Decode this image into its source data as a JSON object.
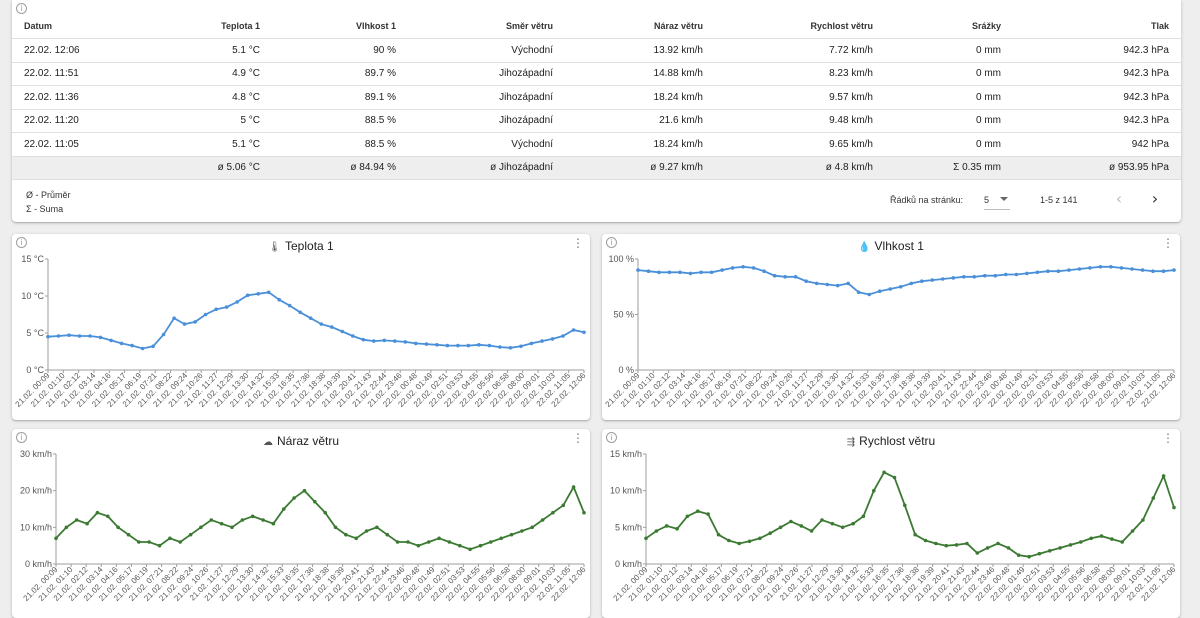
{
  "table": {
    "columns": [
      "Datum",
      "Teplota 1",
      "Vlhkost 1",
      "Směr větru",
      "Náraz větru",
      "Rychlost větru",
      "Srážky",
      "Tlak"
    ],
    "rows": [
      [
        "22.02. 12:06",
        "5.1 °C",
        "90 %",
        "Východní",
        "13.92 km/h",
        "7.72 km/h",
        "0 mm",
        "942.3 hPa"
      ],
      [
        "22.02. 11:51",
        "4.9 °C",
        "89.7 %",
        "Jihozápadní",
        "14.88 km/h",
        "8.23 km/h",
        "0 mm",
        "942.3 hPa"
      ],
      [
        "22.02. 11:36",
        "4.8 °C",
        "89.1 %",
        "Jihozápadní",
        "18.24 km/h",
        "9.57 km/h",
        "0 mm",
        "942.3 hPa"
      ],
      [
        "22.02. 11:20",
        "5 °C",
        "88.5 %",
        "Jihozápadní",
        "21.6 km/h",
        "9.48 km/h",
        "0 mm",
        "942.3 hPa"
      ],
      [
        "22.02. 11:05",
        "5.1 °C",
        "88.5 %",
        "Východní",
        "18.24 km/h",
        "9.65 km/h",
        "0 mm",
        "942 hPa"
      ]
    ],
    "summary": [
      "",
      "ø 5.06 °C",
      "ø 84.94 %",
      "ø Jihozápadní",
      "ø 9.27 km/h",
      "ø 4.8 km/h",
      "Σ 0.35 mm",
      "ø 953.95 hPa"
    ],
    "legend_avg": "Ø - Průměr",
    "legend_sum": "Σ - Suma",
    "rows_per_page_label": "Řádků na stránku:",
    "rows_per_page_value": "5",
    "page_range": "1-5 z 141"
  },
  "icons": {
    "info": "info-icon",
    "menu": "more-vert-icon",
    "prev": "chevron-left-icon",
    "next": "chevron-right-icon",
    "thermometer": "thermometer-icon",
    "drop": "water-drop-icon",
    "cloud": "cloud-wind-icon",
    "wind": "wind-icon"
  },
  "colors": {
    "blue_series": "#4a90d9",
    "green_series": "#3c7a33"
  },
  "x_ticks": [
    "21.02. 00:09",
    "21.02. 01:10",
    "21.02. 02:12",
    "21.02. 03:14",
    "21.02. 04:16",
    "21.02. 05:17",
    "21.02. 06:19",
    "21.02. 07:21",
    "21.02. 08:22",
    "21.02. 09:24",
    "21.02. 10:26",
    "21.02. 11:27",
    "21.02. 12:29",
    "21.02. 13:30",
    "21.02. 14:32",
    "21.02. 15:33",
    "21.02. 16:35",
    "21.02. 17:36",
    "21.02. 18:38",
    "21.02. 19:39",
    "21.02. 20:41",
    "21.02. 21:43",
    "21.02. 22:44",
    "21.02. 23:46",
    "22.02. 00:48",
    "22.02. 01:49",
    "22.02. 02:51",
    "22.02. 03:53",
    "22.02. 04:55",
    "22.02. 05:56",
    "22.02. 06:58",
    "22.02. 08:00",
    "22.02. 09:01",
    "22.02. 10:03",
    "22.02. 11:05",
    "22.02. 12:06"
  ],
  "chart_data": [
    {
      "type": "line",
      "title": "Teplota 1",
      "ylim": [
        0,
        15
      ],
      "yticks": [
        "0 °C",
        "5 °C",
        "10 °C",
        "15 °C"
      ],
      "ytick_values": [
        0,
        5,
        10,
        15
      ],
      "series": [
        {
          "values": [
            4.5,
            4.6,
            4.7,
            4.6,
            4.6,
            4.4,
            4.0,
            3.6,
            3.3,
            2.9,
            3.2,
            4.8,
            7.0,
            6.2,
            6.5,
            7.5,
            8.2,
            8.5,
            9.2,
            10.1,
            10.3,
            10.5,
            9.5,
            8.7,
            7.8,
            7.0,
            6.2,
            5.8,
            5.2,
            4.6,
            4.1,
            3.9,
            4.0,
            3.9,
            3.8,
            3.6,
            3.5,
            3.4,
            3.3,
            3.3,
            3.3,
            3.4,
            3.3,
            3.1,
            3.0,
            3.2,
            3.6,
            3.9,
            4.2,
            4.6,
            5.4,
            5.1
          ]
        }
      ]
    },
    {
      "type": "line",
      "title": "Vlhkost 1",
      "ylim": [
        0,
        100
      ],
      "yticks": [
        "0 %",
        "50 %",
        "100 %"
      ],
      "ytick_values": [
        0,
        50,
        100
      ],
      "series": [
        {
          "values": [
            90,
            89,
            88,
            88,
            88,
            87,
            88,
            88,
            90,
            92,
            93,
            92,
            89,
            85,
            84,
            84,
            80,
            78,
            77,
            76,
            78,
            70,
            68,
            71,
            73,
            75,
            78,
            80,
            81,
            82,
            83,
            84,
            84,
            85,
            85,
            86,
            86,
            87,
            88,
            89,
            89,
            90,
            91,
            92,
            93,
            93,
            92,
            91,
            90,
            89,
            89,
            90
          ]
        }
      ]
    },
    {
      "type": "line",
      "title": "Náraz větru",
      "ylim": [
        0,
        30
      ],
      "yticks": [
        "0 km/h",
        "10 km/h",
        "20 km/h",
        "30 km/h"
      ],
      "ytick_values": [
        0,
        10,
        20,
        30
      ],
      "series": [
        {
          "values": [
            7,
            10,
            12,
            11,
            14,
            13,
            10,
            8,
            6,
            6,
            5,
            7,
            6,
            8,
            10,
            12,
            11,
            10,
            12,
            13,
            12,
            11,
            15,
            18,
            20,
            17,
            14,
            10,
            8,
            7,
            9,
            10,
            8,
            6,
            6,
            5,
            6,
            7,
            6,
            5,
            4,
            5,
            6,
            7,
            8,
            9,
            10,
            12,
            14,
            16,
            21,
            14
          ]
        }
      ]
    },
    {
      "type": "line",
      "title": "Rychlost větru",
      "ylim": [
        0,
        15
      ],
      "yticks": [
        "0 km/h",
        "5 km/h",
        "10 km/h",
        "15 km/h"
      ],
      "ytick_values": [
        0,
        5,
        10,
        15
      ],
      "series": [
        {
          "values": [
            3.5,
            4.5,
            5.2,
            4.8,
            6.5,
            7.2,
            6.8,
            4.0,
            3.2,
            2.8,
            3.1,
            3.5,
            4.2,
            5.0,
            5.8,
            5.2,
            4.5,
            6.0,
            5.5,
            5.0,
            5.5,
            6.5,
            10.0,
            12.5,
            11.8,
            8.0,
            4.0,
            3.2,
            2.8,
            2.5,
            2.6,
            2.8,
            1.5,
            2.2,
            2.8,
            2.2,
            1.2,
            1.0,
            1.4,
            1.8,
            2.2,
            2.6,
            3.0,
            3.5,
            3.8,
            3.4,
            3.0,
            4.5,
            6.0,
            9.0,
            12.0,
            7.7
          ]
        }
      ]
    }
  ]
}
